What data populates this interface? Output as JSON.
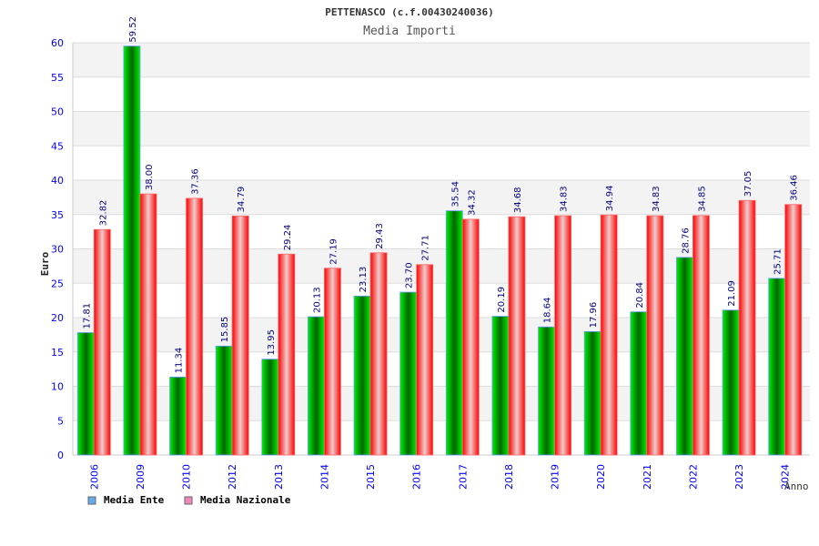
{
  "chart_data": {
    "type": "bar",
    "title": "PETTENASCO (c.f.00430240036)",
    "subtitle": "Media Importi",
    "xlabel": "Anno",
    "ylabel": "Euro",
    "ylim": [
      0,
      60
    ],
    "yticks": [
      0,
      5,
      10,
      15,
      20,
      25,
      30,
      35,
      40,
      45,
      50,
      55,
      60
    ],
    "grid": true,
    "legend_position": "bottom-left",
    "categories": [
      "2006",
      "2009",
      "2010",
      "2012",
      "2013",
      "2014",
      "2015",
      "2016",
      "2017",
      "2018",
      "2019",
      "2020",
      "2021",
      "2022",
      "2023",
      "2024"
    ],
    "series": [
      {
        "name": "Media Ente",
        "color": "#00cc00",
        "legend_color": "#66aaee",
        "values": [
          17.81,
          59.52,
          11.34,
          15.85,
          13.95,
          20.13,
          23.13,
          23.7,
          35.54,
          20.19,
          18.64,
          17.96,
          20.84,
          28.76,
          21.09,
          25.71
        ],
        "labels": [
          "17.81",
          "59.52",
          "11.34",
          "15.85",
          "13.95",
          "20.13",
          "23.13",
          "23.70",
          "35.54",
          "20.19",
          "18.64",
          "17.96",
          "20.84",
          "28.76",
          "21.09",
          "25.71"
        ]
      },
      {
        "name": "Media Nazionale",
        "color": "#ee0000",
        "legend_color": "#ee88bb",
        "values": [
          32.82,
          38.0,
          37.36,
          34.79,
          29.24,
          27.19,
          29.43,
          27.71,
          34.32,
          34.68,
          34.83,
          34.94,
          34.83,
          34.85,
          37.05,
          36.46
        ],
        "labels": [
          "32.82",
          "38.00",
          "37.36",
          "34.79",
          "29.24",
          "27.19",
          "29.43",
          "27.71",
          "34.32",
          "34.68",
          "34.83",
          "34.94",
          "34.83",
          "34.85",
          "37.05",
          "36.46"
        ]
      }
    ]
  }
}
